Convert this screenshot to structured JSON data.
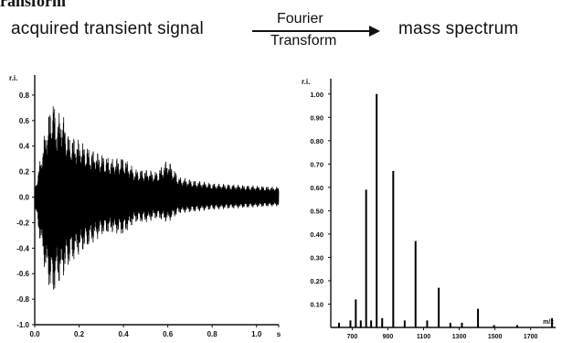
{
  "header": {
    "clipped_title": "ransform",
    "left_caption": "acquired transient signal",
    "arrow_top": "Fourier",
    "arrow_bottom": "Transform",
    "right_caption": "mass spectrum"
  },
  "chart_data": [
    {
      "type": "line",
      "ylabel": "r.i.",
      "xlim": [
        0,
        1.1
      ],
      "ylim": [
        -1.0,
        0.9
      ],
      "x_ticks": [
        0.0,
        0.2,
        0.4,
        0.6,
        0.8,
        1.0
      ],
      "x_tick_labels": [
        "0.0",
        "0.2",
        "0.4",
        "0.6",
        "0.8",
        "1.0",
        "s"
      ],
      "y_ticks": [
        0.8,
        0.6,
        0.4,
        0.2,
        0.0,
        -0.2,
        -0.4,
        -0.6,
        -0.8,
        -1.0
      ],
      "y_tick_labels": [
        "0.8",
        "0.6",
        "0.4",
        "0.2",
        "0.0",
        "-0.2",
        "-0.4",
        "-0.6",
        "-0.8",
        "-1.0"
      ],
      "envelope": {
        "x": [
          0.0,
          0.02,
          0.05,
          0.08,
          0.1,
          0.12,
          0.15,
          0.2,
          0.25,
          0.3,
          0.35,
          0.4,
          0.45,
          0.5,
          0.55,
          0.6,
          0.65,
          0.7,
          0.8,
          0.9,
          1.0,
          1.1
        ],
        "upper": [
          0.06,
          0.25,
          0.55,
          0.8,
          0.62,
          0.7,
          0.5,
          0.45,
          0.38,
          0.34,
          0.3,
          0.32,
          0.22,
          0.22,
          0.2,
          0.3,
          0.16,
          0.14,
          0.11,
          0.1,
          0.09,
          0.08
        ],
        "lower": [
          -0.06,
          -0.3,
          -0.62,
          -0.8,
          -0.7,
          -0.66,
          -0.55,
          -0.45,
          -0.38,
          -0.3,
          -0.28,
          -0.3,
          -0.2,
          -0.2,
          -0.17,
          -0.2,
          -0.13,
          -0.12,
          -0.1,
          -0.09,
          -0.08,
          -0.07
        ]
      }
    },
    {
      "type": "bar",
      "ylabel": "r.i.",
      "xlabel": "m/z",
      "xlim": [
        580,
        1840
      ],
      "ylim": [
        0,
        1.05
      ],
      "x_ticks": [
        700,
        900,
        1100,
        1300,
        1500,
        1700
      ],
      "x_tick_labels": [
        "700",
        "900",
        "1100",
        "1300",
        "1500",
        "1700"
      ],
      "y_ticks": [
        0.1,
        0.2,
        0.3,
        0.4,
        0.5,
        0.6,
        0.7,
        0.8,
        0.9,
        1.0
      ],
      "y_tick_labels": [
        "0.10",
        "0.20",
        "0.30",
        "0.40",
        "0.50",
        "0.60",
        "0.70",
        "0.80",
        "0.90",
        "1.00"
      ],
      "peaks": {
        "x": [
          626,
          690,
          720,
          748,
          778,
          806,
          837,
          868,
          930,
          994,
          1055,
          1120,
          1185,
          1250,
          1315,
          1405,
          1495,
          1625,
          1820
        ],
        "y": [
          0.02,
          0.03,
          0.12,
          0.03,
          0.59,
          0.03,
          1.0,
          0.04,
          0.67,
          0.03,
          0.37,
          0.03,
          0.17,
          0.02,
          0.02,
          0.08,
          0.01,
          0.01,
          0.04
        ]
      }
    }
  ]
}
